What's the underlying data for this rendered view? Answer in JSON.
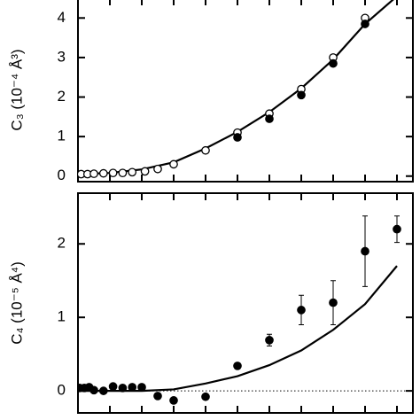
{
  "chart_data": [
    {
      "type": "scatter",
      "ylabel": "C₃ (10⁻⁴ Å³)",
      "xlim": [
        0,
        10.5
      ],
      "xticks": [
        0,
        1,
        2,
        3,
        4,
        5,
        6,
        7,
        8,
        9,
        10
      ],
      "ylim": [
        -0.14,
        4.5
      ],
      "yticks": [
        0,
        1,
        2,
        3,
        4
      ],
      "series": [
        {
          "marker": "line",
          "color": "#000000",
          "x": [
            0,
            1,
            2,
            3,
            4,
            5,
            6,
            7,
            8,
            9,
            10
          ],
          "values": [
            0.05,
            0.08,
            0.17,
            0.35,
            0.7,
            1.12,
            1.62,
            2.22,
            2.95,
            3.85,
            4.55
          ]
        },
        {
          "marker": "open",
          "color": "#000000",
          "x": [
            0.1,
            0.3,
            0.5,
            0.8,
            1.1,
            1.4,
            1.7,
            2.1,
            2.5,
            3.0,
            4.0,
            5.0,
            6.0,
            7.0,
            8.0,
            9.0
          ],
          "values": [
            0.05,
            0.05,
            0.06,
            0.07,
            0.08,
            0.08,
            0.1,
            0.12,
            0.18,
            0.3,
            0.65,
            1.1,
            1.58,
            2.2,
            3.0,
            4.0
          ]
        },
        {
          "marker": "filled",
          "color": "#000000",
          "x": [
            5,
            6,
            7,
            8,
            9
          ],
          "values": [
            0.98,
            1.45,
            2.05,
            2.85,
            3.85
          ]
        }
      ]
    },
    {
      "type": "scatter",
      "ylabel": "C₄ (10⁻⁵ Å⁴)",
      "xlim": [
        0,
        10.5
      ],
      "xticks": [
        0,
        1,
        2,
        3,
        4,
        5,
        6,
        7,
        8,
        9,
        10
      ],
      "ylim": [
        -0.3,
        2.69
      ],
      "yticks": [
        0,
        1,
        2
      ],
      "zero_line": true,
      "series": [
        {
          "marker": "line",
          "color": "#000000",
          "x": [
            0,
            1,
            2,
            3,
            4,
            5,
            6,
            7,
            8,
            9,
            10
          ],
          "values": [
            0,
            0,
            0,
            0.02,
            0.1,
            0.2,
            0.35,
            0.55,
            0.83,
            1.18,
            1.7
          ]
        },
        {
          "marker": "filled",
          "color": "#000000",
          "x": [
            0.05,
            0.2,
            0.35,
            0.5,
            0.8,
            1.1,
            1.4,
            1.7,
            2.0,
            2.5,
            3.0,
            4.0,
            5.0,
            6.0,
            7.0,
            8.0,
            9.0,
            10.0
          ],
          "values": [
            0.04,
            0.04,
            0.05,
            0.01,
            0,
            0.06,
            0.04,
            0.05,
            0.05,
            -0.07,
            -0.13,
            -0.08,
            0.34,
            0.69,
            1.1,
            1.2,
            1.9,
            2.2
          ],
          "errors": [
            0,
            0,
            0,
            0,
            0,
            0,
            0,
            0,
            0,
            0,
            0,
            0,
            0.04,
            0.08,
            0.2,
            0.3,
            0.48,
            0.18
          ]
        }
      ]
    }
  ]
}
